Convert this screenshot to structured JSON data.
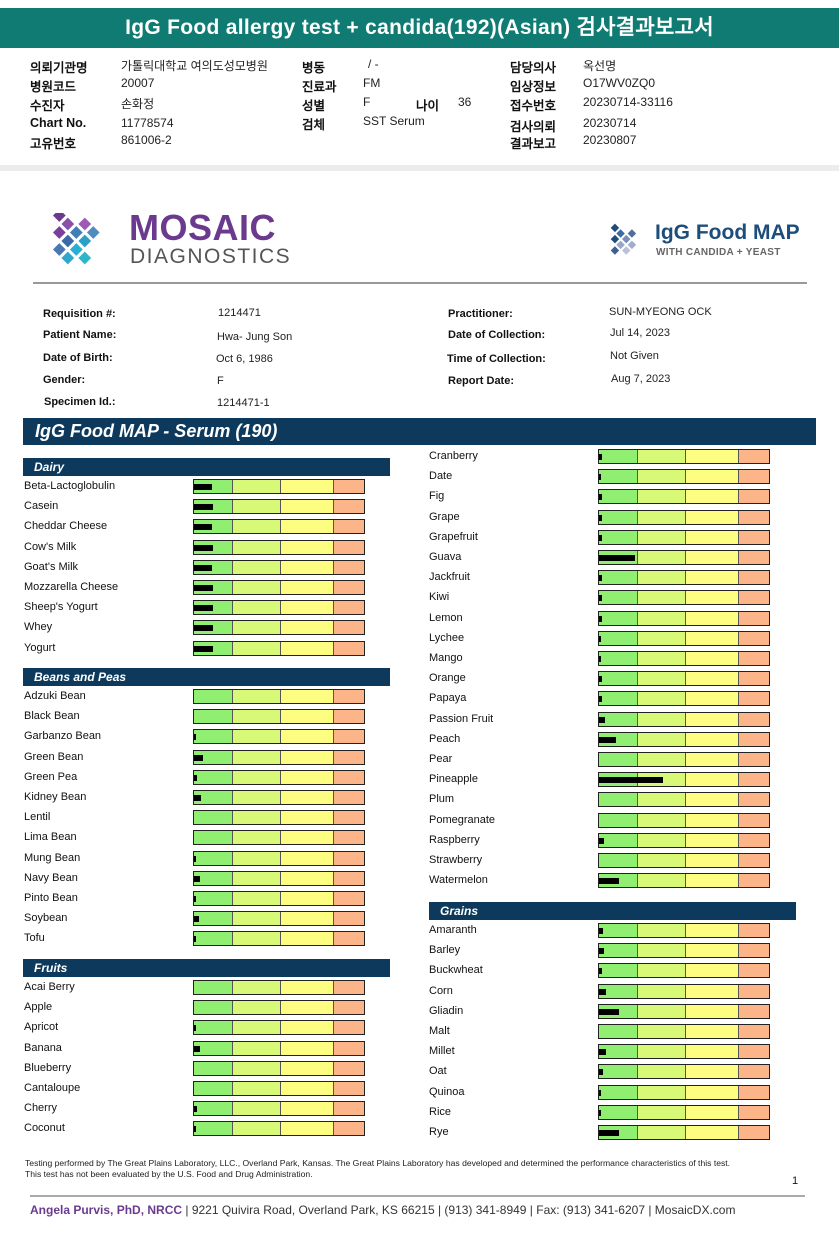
{
  "korean_header": {
    "title": "IgG Food allergy test + candida(192)(Asian) 검사결과보고서",
    "fields": [
      {
        "label": "의뢰기관명",
        "value": "가톨릭대학교 여의도성모병원"
      },
      {
        "label": "병원코드",
        "value": "20007"
      },
      {
        "label": "수진자",
        "value": "손화정"
      },
      {
        "label": "Chart No.",
        "value": "11778574"
      },
      {
        "label": "고유번호",
        "value": "861006-2"
      },
      {
        "label": "병동",
        "value": "/ -"
      },
      {
        "label": "진료과",
        "value": "FM"
      },
      {
        "label": "성별",
        "value": "F"
      },
      {
        "label": "나이",
        "value": "36"
      },
      {
        "label": "검체",
        "value": "SST Serum"
      },
      {
        "label": "담당의사",
        "value": "옥선명"
      },
      {
        "label": "임상정보",
        "value": "O17WV0ZQ0"
      },
      {
        "label": "접수번호",
        "value": "20230714-33116"
      },
      {
        "label": "검사의뢰",
        "value": "20230714"
      },
      {
        "label": "결과보고",
        "value": "20230807"
      }
    ]
  },
  "logos": {
    "mosaic": "MOSAIC",
    "diagnostics": "DIAGNOSTICS",
    "igg_title": "IgG Food MAP",
    "igg_sub": "WITH CANDIDA + YEAST"
  },
  "patient": [
    {
      "label": "Requisition #:",
      "value": "1214471"
    },
    {
      "label": "Patient Name:",
      "value": "Hwa- Jung Son"
    },
    {
      "label": "Date of Birth:",
      "value": "Oct 6, 1986"
    },
    {
      "label": "Gender:",
      "value": "F"
    },
    {
      "label": "Specimen Id.:",
      "value": "1214471-1"
    },
    {
      "label": "Practitioner:",
      "value": "SUN-MYEONG OCK"
    },
    {
      "label": "Date of Collection:",
      "value": "Jul 14, 2023"
    },
    {
      "label": "Time of Collection:",
      "value": "Not Given"
    },
    {
      "label": "Report Date:",
      "value": "Aug 7, 2023"
    }
  ],
  "report_title": "IgG Food MAP - Serum (190)",
  "chart_data": {
    "type": "bar",
    "note_scale": "fill is fraction of full bar width",
    "sections": [
      {
        "name": "Dairy",
        "column": "left",
        "items": [
          {
            "food": "Beta-Lactoglobulin",
            "level": 0.105
          },
          {
            "food": "Casein",
            "level": 0.11
          },
          {
            "food": "Cheddar Cheese",
            "level": 0.105
          },
          {
            "food": "Cow's Milk",
            "level": 0.11
          },
          {
            "food": "Goat's Milk",
            "level": 0.105
          },
          {
            "food": "Mozzarella Cheese",
            "level": 0.11
          },
          {
            "food": "Sheep's Yogurt",
            "level": 0.11
          },
          {
            "food": "Whey",
            "level": 0.11
          },
          {
            "food": "Yogurt",
            "level": 0.11
          }
        ]
      },
      {
        "name": "Beans and Peas",
        "column": "left",
        "items": [
          {
            "food": "Adzuki Bean",
            "level": 0
          },
          {
            "food": "Black Bean",
            "level": 0
          },
          {
            "food": "Garbanzo Bean",
            "level": 0.01
          },
          {
            "food": "Green Bean",
            "level": 0.05
          },
          {
            "food": "Green Pea",
            "level": 0.015
          },
          {
            "food": "Kidney Bean",
            "level": 0.04
          },
          {
            "food": "Lentil",
            "level": 0
          },
          {
            "food": "Lima Bean",
            "level": 0
          },
          {
            "food": "Mung Bean",
            "level": 0.005
          },
          {
            "food": "Navy Bean",
            "level": 0.035
          },
          {
            "food": "Pinto Bean",
            "level": 0.01
          },
          {
            "food": "Soybean",
            "level": 0.03
          },
          {
            "food": "Tofu",
            "level": 0.01
          }
        ]
      },
      {
        "name": "Fruits",
        "column": "left",
        "items": [
          {
            "food": "Acai Berry",
            "level": 0
          },
          {
            "food": "Apple",
            "level": 0
          },
          {
            "food": "Apricot",
            "level": 0.01
          },
          {
            "food": "Banana",
            "level": 0.035
          },
          {
            "food": "Blueberry",
            "level": 0
          },
          {
            "food": "Cantaloupe",
            "level": 0
          },
          {
            "food": "Cherry",
            "level": 0.015
          },
          {
            "food": "Coconut",
            "level": 0.005
          }
        ]
      },
      {
        "name": "",
        "column": "right",
        "items": [
          {
            "food": "Cranberry",
            "level": 0.02
          },
          {
            "food": "Date",
            "level": 0.005
          },
          {
            "food": "Fig",
            "level": 0.02
          },
          {
            "food": "Grape",
            "level": 0.015
          },
          {
            "food": "Grapefruit",
            "level": 0.015
          },
          {
            "food": "Guava",
            "level": 0.21
          },
          {
            "food": "Jackfruit",
            "level": 0.015
          },
          {
            "food": "Kiwi",
            "level": 0.015
          },
          {
            "food": "Lemon",
            "level": 0.015
          },
          {
            "food": "Lychee",
            "level": 0.005
          },
          {
            "food": "Mango",
            "level": 0.005
          },
          {
            "food": "Orange",
            "level": 0.015
          },
          {
            "food": "Papaya",
            "level": 0.015
          },
          {
            "food": "Passion Fruit",
            "level": 0.035
          },
          {
            "food": "Peach",
            "level": 0.1
          },
          {
            "food": "Pear",
            "level": 0
          },
          {
            "food": "Pineapple",
            "level": 0.37
          },
          {
            "food": "Plum",
            "level": 0
          },
          {
            "food": "Pomegranate",
            "level": 0
          },
          {
            "food": "Raspberry",
            "level": 0.03
          },
          {
            "food": "Strawberry",
            "level": 0
          },
          {
            "food": "Watermelon",
            "level": 0.115
          }
        ]
      },
      {
        "name": "Grains",
        "column": "right",
        "items": [
          {
            "food": "Amaranth",
            "level": 0.025
          },
          {
            "food": "Barley",
            "level": 0.03
          },
          {
            "food": "Buckwheat",
            "level": 0.02
          },
          {
            "food": "Corn",
            "level": 0.04
          },
          {
            "food": "Gliadin",
            "level": 0.115
          },
          {
            "food": "Malt",
            "level": 0
          },
          {
            "food": "Millet",
            "level": 0.04
          },
          {
            "food": "Oat",
            "level": 0.025
          },
          {
            "food": "Quinoa",
            "level": 0.005
          },
          {
            "food": "Rice",
            "level": 0.005
          },
          {
            "food": "Rye",
            "level": 0.115
          }
        ]
      }
    ],
    "zone_colors": [
      "#90ee70",
      "#d8f877",
      "#fdfd82",
      "#fbb588"
    ]
  },
  "footnote": "Testing performed by The Great Plains Laboratory, LLC., Overland Park, Kansas.  The Great Plains Laboratory has developed and determined the performance characteristics of this test.  This test has not been evaluated by the U.S.  Food and Drug Administration.",
  "page_number": "1",
  "footer": {
    "name": "Angela Purvis, PhD, NRCC",
    "address": " | 9221 Quivira Road, Overland Park, KS 66215  |  (913) 341-8949  |  Fax: (913) 341-6207 | MosaicDX.com"
  }
}
